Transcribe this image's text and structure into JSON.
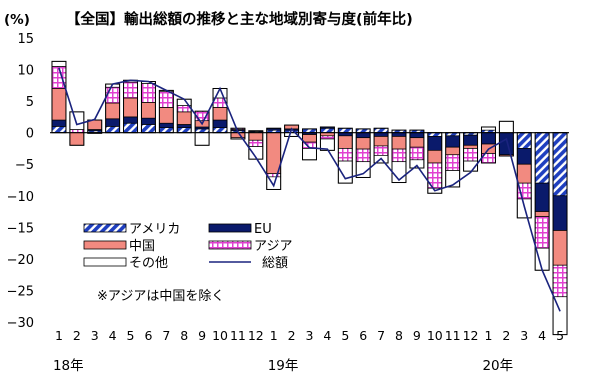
{
  "chart_data": {
    "type": "bar",
    "title": "【全国】輸出総額の推移と主な地域別寄与度(前年比)",
    "unit_label": "(%)",
    "note": "※アジアは中国を除く",
    "ylim": [
      -30,
      15
    ],
    "ytick_step": 5,
    "ytick_labels": [
      "15",
      "10",
      "5",
      "0",
      "−5",
      "−10",
      "−15",
      "−20",
      "−25",
      "−30"
    ],
    "categories": [
      "1",
      "2",
      "3",
      "4",
      "5",
      "6",
      "7",
      "8",
      "9",
      "10",
      "11",
      "12",
      "1",
      "2",
      "3",
      "4",
      "5",
      "6",
      "7",
      "8",
      "9",
      "10",
      "11",
      "12",
      "1",
      "2",
      "3",
      "4",
      "5"
    ],
    "year_labels": [
      {
        "label": "18年",
        "index": 0
      },
      {
        "label": "19年",
        "index": 12
      },
      {
        "label": "20年",
        "index": 24
      }
    ],
    "series": [
      {
        "name": "アメリカ",
        "key": "usa",
        "color": "#1f3fbf",
        "pattern": "diagonal-stripe",
        "values": [
          1.0,
          0.0,
          0.3,
          1.0,
          1.5,
          1.3,
          0.8,
          0.8,
          0.6,
          0.8,
          0.3,
          0.2,
          0.4,
          0.4,
          0.6,
          0.7,
          0.7,
          0.6,
          0.7,
          0.4,
          0.4,
          -0.6,
          -0.5,
          -0.4,
          0.4,
          0.0,
          -2.5,
          -8.0,
          -10.0
        ]
      },
      {
        "name": "EU",
        "key": "eu",
        "color": "#0a1a6b",
        "pattern": "solid",
        "values": [
          1.0,
          0.0,
          0.2,
          1.2,
          1.0,
          1.0,
          0.7,
          0.5,
          0.3,
          1.2,
          0.2,
          0.1,
          0.3,
          0.2,
          -0.3,
          0.2,
          -0.5,
          -0.8,
          -0.6,
          -0.6,
          -0.8,
          -2.2,
          -1.8,
          -1.6,
          -1.8,
          -3.5,
          -2.5,
          -4.5,
          -5.5
        ]
      },
      {
        "name": "中国",
        "key": "china",
        "color": "#f28a80",
        "pattern": "solid",
        "values": [
          5.0,
          -2.0,
          1.5,
          2.5,
          3.0,
          2.5,
          2.5,
          2.0,
          1.0,
          2.0,
          -0.8,
          -1.2,
          -6.5,
          0.6,
          -1.2,
          -0.5,
          -2.0,
          -1.8,
          -1.5,
          -2.0,
          -1.5,
          -2.0,
          -1.2,
          -0.5,
          -1.5,
          -0.2,
          -3.0,
          -0.8,
          -5.5
        ]
      },
      {
        "name": "アジア",
        "key": "asia",
        "color": "#e040d0",
        "pattern": "grid",
        "values": [
          3.5,
          0.5,
          0.0,
          2.5,
          2.5,
          3.0,
          2.5,
          1.0,
          1.5,
          1.5,
          0.2,
          -1.0,
          -0.5,
          0.0,
          -1.0,
          -0.5,
          -2.0,
          -2.0,
          -1.5,
          -2.0,
          -2.0,
          -4.0,
          -2.5,
          -2.0,
          -1.5,
          0.0,
          -2.5,
          -5.0,
          -5.0
        ]
      },
      {
        "name": "その他",
        "key": "other",
        "color": "#ffffff",
        "pattern": "outline",
        "values": [
          0.8,
          2.8,
          -0.1,
          0.5,
          0.3,
          0.3,
          0.2,
          1.0,
          -2.0,
          1.5,
          -0.2,
          -2.0,
          -2.0,
          -0.6,
          -1.8,
          -1.8,
          -3.5,
          -2.5,
          -1.2,
          -3.3,
          -1.3,
          -0.8,
          -2.6,
          -1.6,
          0.5,
          1.8,
          -3.0,
          -3.5,
          -6.0
        ]
      },
      {
        "name": "総額",
        "key": "total",
        "color": "#1a237e",
        "type": "line",
        "values": [
          10.3,
          1.3,
          2.1,
          7.7,
          8.3,
          8.1,
          6.7,
          5.3,
          1.4,
          7.0,
          0.1,
          -3.9,
          -8.4,
          0.6,
          -2.4,
          -2.6,
          -7.3,
          -6.5,
          -4.1,
          -7.5,
          -5.2,
          -9.2,
          -8.3,
          -6.3,
          -2.6,
          -1.0,
          -11.7,
          -21.8,
          -28.3
        ]
      }
    ]
  }
}
